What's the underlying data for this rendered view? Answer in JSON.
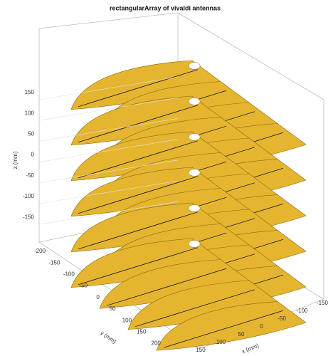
{
  "title": "rectangularArray of vivaldi antennas",
  "z_axis": {
    "label": "z (mm)",
    "ticks": [
      150,
      100,
      50,
      0,
      -50,
      -100,
      -150
    ]
  },
  "y_axis": {
    "label": "y (mm)",
    "ticks": [
      -200,
      -150,
      -100,
      -50,
      0,
      50,
      100,
      150,
      200
    ]
  },
  "x_axis": {
    "label": "x (mm)",
    "ticks": [
      150,
      100,
      50,
      0,
      -50,
      -100,
      -150
    ]
  }
}
